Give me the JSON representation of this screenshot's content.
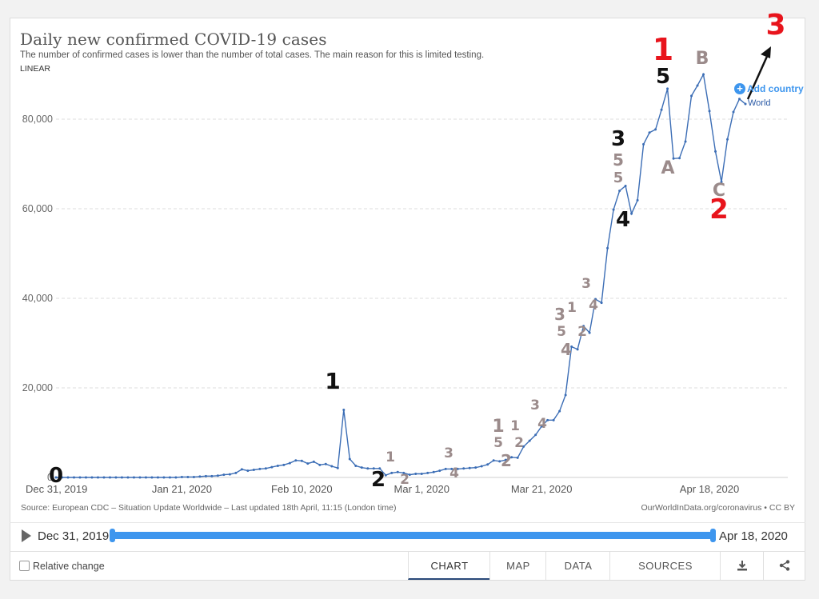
{
  "header": {
    "title": "Daily new confirmed COVID-19 cases",
    "subtitle": "The number of confirmed cases is lower than the number of total cases. The main reason for this is limited testing.",
    "scale_label": "LINEAR"
  },
  "add_country": {
    "label": "Add country",
    "plus": "+"
  },
  "series_label": "World",
  "source": "Source: European CDC – Situation Update Worldwide – Last updated 18th April, 11:15 (London time)",
  "credit": "OurWorldInData.org/coronavirus • CC BY",
  "timeline": {
    "start": "Dec 31, 2019",
    "end": "Apr 18, 2020"
  },
  "footer": {
    "relative_change": "Relative change",
    "tabs": [
      "CHART",
      "MAP",
      "DATA",
      "SOURCES"
    ],
    "download_icon": "download-icon",
    "share_icon": "share-icon"
  },
  "colors": {
    "line": "#3b6db5",
    "accent_red": "#e8141c",
    "annot_dark": "#111111",
    "annot_grey": "#9b8b8b",
    "timeline": "#3e96ee"
  },
  "chart_data": {
    "type": "line",
    "x_start": "2019-12-31",
    "xtick_labels": [
      "Dec 31, 2019",
      "Jan 21, 2020",
      "Feb 10, 2020",
      "Mar 1, 2020",
      "Mar 21, 2020",
      "Apr 18, 2020"
    ],
    "ytick_labels": [
      "0",
      "20,000",
      "40,000",
      "60,000",
      "80,000"
    ],
    "ylim": [
      0,
      90000
    ],
    "grid": true,
    "series": [
      {
        "values": [
          0,
          0,
          0,
          0,
          0,
          0,
          0,
          0,
          0,
          0,
          0,
          0,
          0,
          0,
          0,
          0,
          0,
          0,
          0,
          0,
          0,
          100,
          100,
          100,
          200,
          300,
          300,
          400,
          600,
          700,
          1000,
          1800,
          1500,
          1700,
          1900,
          2000,
          2300,
          2600,
          2800,
          3200,
          3800,
          3700,
          3100,
          3500,
          2800,
          3000,
          2500,
          2100,
          15100,
          4100,
          2600,
          2200,
          2000,
          2000,
          2000,
          500,
          1000,
          1200,
          1000,
          600,
          800,
          800,
          1000,
          1200,
          1500,
          1900,
          1900,
          1900,
          2000,
          2100,
          2200,
          2500,
          2900,
          3800,
          3600,
          3900,
          4500,
          4400,
          6900,
          8200,
          9500,
          11400,
          12800,
          12800,
          14800,
          18400,
          29200,
          28600,
          33800,
          32300,
          39800,
          39000,
          51200,
          59800,
          64000,
          65100,
          58900,
          61900,
          74400,
          77000,
          77700,
          82100,
          86800,
          71200,
          71300,
          75000,
          85200,
          87500,
          90000,
          81800,
          72800,
          66000,
          75500,
          81600,
          84500,
          83400
        ]
      }
    ],
    "annotations": [
      {
        "text": "0",
        "color": "dark"
      },
      {
        "text": "1",
        "color": "dark"
      },
      {
        "text": "2",
        "color": "dark"
      },
      {
        "text": "1",
        "color": "grey"
      },
      {
        "text": "2",
        "color": "grey"
      },
      {
        "text": "3",
        "color": "grey"
      },
      {
        "text": "4",
        "color": "grey"
      },
      {
        "text": "1",
        "color": "grey"
      },
      {
        "text": "5",
        "color": "grey"
      },
      {
        "text": "2",
        "color": "grey"
      },
      {
        "text": "1",
        "color": "grey"
      },
      {
        "text": "2",
        "color": "grey"
      },
      {
        "text": "3",
        "color": "grey"
      },
      {
        "text": "4",
        "color": "grey"
      },
      {
        "text": "3",
        "color": "grey"
      },
      {
        "text": "5",
        "color": "grey"
      },
      {
        "text": "4",
        "color": "grey"
      },
      {
        "text": "1",
        "color": "grey"
      },
      {
        "text": "2",
        "color": "grey"
      },
      {
        "text": "3",
        "color": "grey"
      },
      {
        "text": "4",
        "color": "grey"
      },
      {
        "text": "3",
        "color": "dark"
      },
      {
        "text": "5",
        "color": "grey"
      },
      {
        "text": "5",
        "color": "grey"
      },
      {
        "text": "4",
        "color": "dark"
      },
      {
        "text": "1",
        "color": "red"
      },
      {
        "text": "5",
        "color": "dark"
      },
      {
        "text": "A",
        "color": "grey"
      },
      {
        "text": "B",
        "color": "grey"
      },
      {
        "text": "C",
        "color": "grey"
      },
      {
        "text": "2",
        "color": "red"
      },
      {
        "text": "3",
        "color": "red"
      }
    ]
  }
}
